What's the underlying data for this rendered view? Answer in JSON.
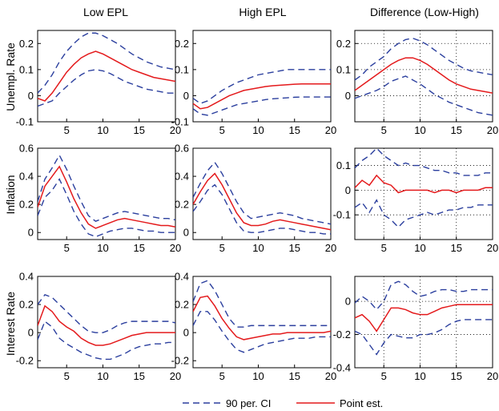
{
  "columns": [
    "Low EPL",
    "High EPL",
    "Difference (Low-High)"
  ],
  "rows": [
    "Unempl. Rate",
    "Inflation",
    "Interest Rate"
  ],
  "legend": {
    "ci_label": "90 per. CI",
    "point_label": "Point est.",
    "placement": "bottom-center"
  },
  "colors": {
    "ci": "#2B3F9E",
    "point": "#E41A1C",
    "grid": "#000000"
  },
  "chart_data": [
    {
      "type": "line",
      "row": "Unempl. Rate",
      "column": "Low EPL",
      "xlim": [
        1,
        20
      ],
      "ylim": [
        -0.1,
        0.25
      ],
      "xticks": [
        5,
        10,
        15,
        20
      ],
      "yticks": [
        -0.1,
        0,
        0.1,
        0.2
      ],
      "yticklabels": [
        "-0.1",
        "0",
        "0.1",
        "0.2"
      ],
      "grid": false,
      "x": [
        1,
        2,
        3,
        4,
        5,
        6,
        7,
        8,
        9,
        10,
        11,
        12,
        13,
        14,
        15,
        16,
        17,
        18,
        19,
        20
      ],
      "series": [
        {
          "name": "90 per. CI",
          "role": "ci_upper",
          "values": [
            0.01,
            0.04,
            0.08,
            0.13,
            0.17,
            0.2,
            0.225,
            0.24,
            0.24,
            0.23,
            0.215,
            0.2,
            0.18,
            0.16,
            0.145,
            0.13,
            0.12,
            0.11,
            0.105,
            0.1
          ]
        },
        {
          "name": "Point est.",
          "role": "point",
          "values": [
            -0.01,
            -0.02,
            0.01,
            0.05,
            0.09,
            0.12,
            0.145,
            0.16,
            0.17,
            0.16,
            0.145,
            0.13,
            0.115,
            0.1,
            0.09,
            0.08,
            0.07,
            0.065,
            0.06,
            0.055
          ]
        },
        {
          "name": "90 per. CI",
          "role": "ci_lower",
          "values": [
            -0.04,
            -0.03,
            -0.02,
            0.01,
            0.035,
            0.06,
            0.08,
            0.095,
            0.1,
            0.095,
            0.085,
            0.07,
            0.055,
            0.045,
            0.035,
            0.025,
            0.02,
            0.015,
            0.01,
            0.01
          ]
        }
      ]
    },
    {
      "type": "line",
      "row": "Unempl. Rate",
      "column": "High EPL",
      "xlim": [
        1,
        20
      ],
      "ylim": [
        -0.1,
        0.25
      ],
      "xticks": [
        5,
        10,
        15,
        20
      ],
      "yticks": [
        -0.1,
        0,
        0.1,
        0.2
      ],
      "yticklabels": [
        "-0.1",
        "0",
        "0.1",
        "0.2"
      ],
      "grid": false,
      "x": [
        1,
        2,
        3,
        4,
        5,
        6,
        7,
        8,
        9,
        10,
        11,
        12,
        13,
        14,
        15,
        16,
        17,
        18,
        19,
        20
      ],
      "series": [
        {
          "name": "90 per. CI",
          "role": "ci_upper",
          "values": [
            -0.01,
            -0.03,
            -0.02,
            0.0,
            0.02,
            0.035,
            0.05,
            0.06,
            0.07,
            0.08,
            0.085,
            0.09,
            0.095,
            0.1,
            0.1,
            0.1,
            0.1,
            0.1,
            0.1,
            0.1
          ]
        },
        {
          "name": "Point est.",
          "role": "point",
          "values": [
            -0.03,
            -0.05,
            -0.045,
            -0.03,
            -0.015,
            0.0,
            0.01,
            0.02,
            0.025,
            0.03,
            0.035,
            0.038,
            0.04,
            0.042,
            0.044,
            0.045,
            0.045,
            0.045,
            0.045,
            0.045
          ]
        },
        {
          "name": "90 per. CI",
          "role": "ci_lower",
          "values": [
            -0.05,
            -0.07,
            -0.075,
            -0.065,
            -0.055,
            -0.045,
            -0.035,
            -0.03,
            -0.025,
            -0.02,
            -0.015,
            -0.012,
            -0.01,
            -0.008,
            -0.006,
            -0.005,
            -0.005,
            -0.005,
            -0.005,
            -0.005
          ]
        }
      ]
    },
    {
      "type": "line",
      "row": "Unempl. Rate",
      "column": "Difference (Low-High)",
      "xlim": [
        1,
        20
      ],
      "ylim": [
        -0.1,
        0.25
      ],
      "xticks": [
        5,
        10,
        15,
        20
      ],
      "yticks": [
        0,
        0.1,
        0.2
      ],
      "yticklabels": [
        "0",
        "0.1",
        "0.2"
      ],
      "grid": true,
      "x": [
        1,
        2,
        3,
        4,
        5,
        6,
        7,
        8,
        9,
        10,
        11,
        12,
        13,
        14,
        15,
        16,
        17,
        18,
        19,
        20
      ],
      "series": [
        {
          "name": "90 per. CI",
          "role": "ci_upper",
          "values": [
            0.06,
            0.08,
            0.11,
            0.13,
            0.15,
            0.18,
            0.2,
            0.215,
            0.22,
            0.21,
            0.195,
            0.175,
            0.155,
            0.135,
            0.12,
            0.105,
            0.095,
            0.09,
            0.085,
            0.08
          ]
        },
        {
          "name": "Point est.",
          "role": "point",
          "values": [
            0.02,
            0.04,
            0.06,
            0.08,
            0.1,
            0.12,
            0.135,
            0.145,
            0.145,
            0.135,
            0.12,
            0.1,
            0.08,
            0.06,
            0.045,
            0.035,
            0.025,
            0.02,
            0.015,
            0.01
          ]
        },
        {
          "name": "90 per. CI",
          "role": "ci_lower",
          "values": [
            -0.01,
            0.0,
            0.01,
            0.02,
            0.035,
            0.055,
            0.065,
            0.075,
            0.06,
            0.045,
            0.025,
            0.005,
            -0.01,
            -0.025,
            -0.035,
            -0.045,
            -0.055,
            -0.065,
            -0.07,
            -0.075
          ]
        }
      ]
    },
    {
      "type": "line",
      "row": "Inflation",
      "column": "Low EPL",
      "xlim": [
        1,
        20
      ],
      "ylim": [
        -0.05,
        0.6
      ],
      "xticks": [
        5,
        10,
        15,
        20
      ],
      "yticks": [
        0,
        0.2,
        0.4,
        0.6
      ],
      "yticklabels": [
        "0",
        "0.2",
        "0.4",
        "0.6"
      ],
      "grid": false,
      "x": [
        1,
        2,
        3,
        4,
        5,
        6,
        7,
        8,
        9,
        10,
        11,
        12,
        13,
        14,
        15,
        16,
        17,
        18,
        19,
        20
      ],
      "series": [
        {
          "name": "90 per. CI",
          "role": "ci_upper",
          "values": [
            0.22,
            0.38,
            0.46,
            0.55,
            0.45,
            0.33,
            0.22,
            0.12,
            0.08,
            0.1,
            0.12,
            0.14,
            0.15,
            0.14,
            0.13,
            0.12,
            0.11,
            0.1,
            0.1,
            0.09
          ]
        },
        {
          "name": "Point est.",
          "role": "point",
          "values": [
            0.18,
            0.33,
            0.4,
            0.47,
            0.36,
            0.24,
            0.14,
            0.06,
            0.03,
            0.05,
            0.07,
            0.09,
            0.1,
            0.09,
            0.08,
            0.07,
            0.06,
            0.05,
            0.05,
            0.04
          ]
        },
        {
          "name": "90 per. CI",
          "role": "ci_lower",
          "values": [
            0.12,
            0.25,
            0.3,
            0.38,
            0.27,
            0.15,
            0.06,
            -0.01,
            -0.03,
            -0.01,
            0.01,
            0.02,
            0.03,
            0.03,
            0.02,
            0.01,
            0.01,
            0.0,
            0.0,
            0.0
          ]
        }
      ]
    },
    {
      "type": "line",
      "row": "Inflation",
      "column": "High EPL",
      "xlim": [
        1,
        20
      ],
      "ylim": [
        -0.05,
        0.6
      ],
      "xticks": [
        5,
        10,
        15,
        20
      ],
      "yticks": [
        0,
        0.2,
        0.4,
        0.6
      ],
      "yticklabels": [
        "0",
        "0.2",
        "0.4",
        "0.6"
      ],
      "grid": false,
      "x": [
        1,
        2,
        3,
        4,
        5,
        6,
        7,
        8,
        9,
        10,
        11,
        12,
        13,
        14,
        15,
        16,
        17,
        18,
        19,
        20
      ],
      "series": [
        {
          "name": "90 per. CI",
          "role": "ci_upper",
          "values": [
            0.25,
            0.35,
            0.44,
            0.5,
            0.42,
            0.32,
            0.22,
            0.14,
            0.1,
            0.11,
            0.12,
            0.13,
            0.14,
            0.13,
            0.12,
            0.1,
            0.09,
            0.08,
            0.07,
            0.06
          ]
        },
        {
          "name": "Point est.",
          "role": "point",
          "values": [
            0.2,
            0.29,
            0.37,
            0.42,
            0.34,
            0.24,
            0.14,
            0.07,
            0.05,
            0.05,
            0.06,
            0.08,
            0.09,
            0.08,
            0.07,
            0.06,
            0.05,
            0.04,
            0.03,
            0.02
          ]
        },
        {
          "name": "90 per. CI",
          "role": "ci_lower",
          "values": [
            0.15,
            0.22,
            0.3,
            0.34,
            0.27,
            0.17,
            0.07,
            0.01,
            0.0,
            0.0,
            0.01,
            0.02,
            0.03,
            0.03,
            0.02,
            0.01,
            0.0,
            0.0,
            -0.01,
            -0.01
          ]
        }
      ]
    },
    {
      "type": "line",
      "row": "Inflation",
      "column": "Difference (Low-High)",
      "xlim": [
        1,
        20
      ],
      "ylim": [
        -0.2,
        0.17
      ],
      "xticks": [
        5,
        10,
        15,
        20
      ],
      "yticks": [
        -0.1,
        0,
        0.1
      ],
      "yticklabels": [
        "-0.1",
        "0",
        "0.1"
      ],
      "grid": true,
      "x": [
        1,
        2,
        3,
        4,
        5,
        6,
        7,
        8,
        9,
        10,
        11,
        12,
        13,
        14,
        15,
        16,
        17,
        18,
        19,
        20
      ],
      "series": [
        {
          "name": "90 per. CI",
          "role": "ci_upper",
          "values": [
            0.09,
            0.12,
            0.14,
            0.17,
            0.14,
            0.12,
            0.1,
            0.11,
            0.1,
            0.1,
            0.09,
            0.08,
            0.08,
            0.07,
            0.07,
            0.06,
            0.06,
            0.06,
            0.07,
            0.07
          ]
        },
        {
          "name": "Point est.",
          "role": "point",
          "values": [
            0.01,
            0.04,
            0.02,
            0.06,
            0.03,
            0.02,
            -0.01,
            0.0,
            0.0,
            0.0,
            0.0,
            -0.01,
            0.0,
            0.0,
            -0.01,
            0.0,
            0.0,
            0.0,
            0.01,
            0.01
          ]
        },
        {
          "name": "90 per. CI",
          "role": "ci_lower",
          "values": [
            -0.07,
            -0.05,
            -0.09,
            -0.04,
            -0.1,
            -0.12,
            -0.15,
            -0.12,
            -0.11,
            -0.1,
            -0.09,
            -0.1,
            -0.09,
            -0.08,
            -0.08,
            -0.07,
            -0.07,
            -0.06,
            -0.06,
            -0.06
          ]
        }
      ]
    },
    {
      "type": "line",
      "row": "Interest Rate",
      "column": "Low EPL",
      "xlim": [
        1,
        20
      ],
      "ylim": [
        -0.25,
        0.4
      ],
      "xticks": [
        5,
        10,
        15,
        20
      ],
      "yticks": [
        -0.2,
        0,
        0.2,
        0.4
      ],
      "yticklabels": [
        "-0.2",
        "0",
        "0.2",
        "0.4"
      ],
      "grid": false,
      "x": [
        1,
        2,
        3,
        4,
        5,
        6,
        7,
        8,
        9,
        10,
        11,
        12,
        13,
        14,
        15,
        16,
        17,
        18,
        19,
        20
      ],
      "series": [
        {
          "name": "90 per. CI",
          "role": "ci_upper",
          "values": [
            0.2,
            0.27,
            0.25,
            0.2,
            0.15,
            0.1,
            0.05,
            0.01,
            0.0,
            0.0,
            0.02,
            0.05,
            0.07,
            0.08,
            0.08,
            0.08,
            0.08,
            0.08,
            0.08,
            0.07
          ]
        },
        {
          "name": "Point est.",
          "role": "point",
          "values": [
            0.05,
            0.19,
            0.15,
            0.08,
            0.04,
            0.01,
            -0.04,
            -0.07,
            -0.09,
            -0.09,
            -0.08,
            -0.06,
            -0.04,
            -0.02,
            -0.01,
            0.0,
            0.0,
            0.0,
            0.0,
            0.0
          ]
        },
        {
          "name": "90 per. CI",
          "role": "ci_lower",
          "values": [
            -0.05,
            0.08,
            0.04,
            -0.04,
            -0.08,
            -0.11,
            -0.14,
            -0.16,
            -0.18,
            -0.19,
            -0.19,
            -0.17,
            -0.15,
            -0.12,
            -0.1,
            -0.09,
            -0.08,
            -0.08,
            -0.07,
            -0.07
          ]
        }
      ]
    },
    {
      "type": "line",
      "row": "Interest Rate",
      "column": "High EPL",
      "xlim": [
        1,
        20
      ],
      "ylim": [
        -0.25,
        0.4
      ],
      "xticks": [
        5,
        10,
        15,
        20
      ],
      "yticks": [
        -0.2,
        0,
        0.2,
        0.4
      ],
      "yticklabels": [
        "-0.2",
        "0",
        "0.2",
        "0.4"
      ],
      "grid": false,
      "x": [
        1,
        2,
        3,
        4,
        5,
        6,
        7,
        8,
        9,
        10,
        11,
        12,
        13,
        14,
        15,
        16,
        17,
        18,
        19,
        20
      ],
      "series": [
        {
          "name": "90 per. CI",
          "role": "ci_upper",
          "values": [
            0.22,
            0.35,
            0.37,
            0.3,
            0.2,
            0.1,
            0.04,
            0.04,
            0.05,
            0.05,
            0.05,
            0.05,
            0.05,
            0.05,
            0.05,
            0.05,
            0.05,
            0.05,
            0.05,
            0.05
          ]
        },
        {
          "name": "Point est.",
          "role": "point",
          "values": [
            0.15,
            0.25,
            0.26,
            0.19,
            0.1,
            0.03,
            -0.03,
            -0.05,
            -0.04,
            -0.03,
            -0.02,
            -0.01,
            -0.01,
            0.0,
            0.0,
            0.0,
            0.0,
            0.0,
            0.0,
            0.01
          ]
        },
        {
          "name": "90 per. CI",
          "role": "ci_lower",
          "values": [
            0.05,
            0.15,
            0.15,
            0.09,
            0.01,
            -0.06,
            -0.12,
            -0.14,
            -0.12,
            -0.1,
            -0.08,
            -0.07,
            -0.06,
            -0.05,
            -0.04,
            -0.04,
            -0.04,
            -0.03,
            -0.03,
            -0.03
          ]
        }
      ]
    },
    {
      "type": "line",
      "row": "Interest Rate",
      "column": "Difference (Low-High)",
      "xlim": [
        1,
        20
      ],
      "ylim": [
        -0.4,
        0.15
      ],
      "xticks": [
        5,
        10,
        15,
        20
      ],
      "yticks": [
        -0.4,
        -0.2,
        0
      ],
      "yticklabels": [
        "-0.4",
        "-0.2",
        "0"
      ],
      "grid": true,
      "x": [
        1,
        2,
        3,
        4,
        5,
        6,
        7,
        8,
        9,
        10,
        11,
        12,
        13,
        14,
        15,
        16,
        17,
        18,
        19,
        20
      ],
      "series": [
        {
          "name": "90 per. CI",
          "role": "ci_upper",
          "values": [
            -0.01,
            0.03,
            0.0,
            -0.05,
            0.0,
            0.1,
            0.12,
            0.1,
            0.06,
            0.03,
            0.04,
            0.06,
            0.07,
            0.07,
            0.06,
            0.06,
            0.07,
            0.07,
            0.07,
            0.07
          ]
        },
        {
          "name": "Point est.",
          "role": "point",
          "values": [
            -0.1,
            -0.08,
            -0.12,
            -0.18,
            -0.11,
            -0.04,
            -0.04,
            -0.05,
            -0.07,
            -0.08,
            -0.08,
            -0.06,
            -0.04,
            -0.03,
            -0.02,
            -0.02,
            -0.02,
            -0.02,
            -0.02,
            -0.02
          ]
        },
        {
          "name": "90 per. CI",
          "role": "ci_lower",
          "values": [
            -0.18,
            -0.2,
            -0.26,
            -0.32,
            -0.25,
            -0.2,
            -0.21,
            -0.22,
            -0.22,
            -0.2,
            -0.2,
            -0.19,
            -0.17,
            -0.14,
            -0.12,
            -0.11,
            -0.11,
            -0.11,
            -0.11,
            -0.11
          ]
        }
      ]
    }
  ]
}
